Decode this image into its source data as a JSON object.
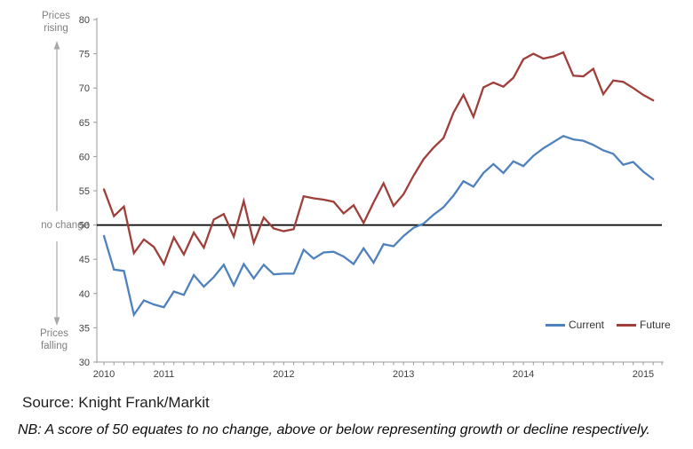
{
  "annotations": {
    "rising": "Prices rising",
    "no_change": "no change",
    "falling": "Prices falling"
  },
  "legend": [
    {
      "label": "Current",
      "color": "#4f81bd"
    },
    {
      "label": "Future",
      "color": "#9e3f3a"
    }
  ],
  "source_line": "Source: Knight Frank/Markit",
  "nb_line": "NB: A score of 50 equates to no change, above or below representing growth or decline respectively.",
  "chart_data": {
    "type": "line",
    "title": "",
    "xlabel": "",
    "ylabel": "",
    "x_start": "2010-07",
    "x_interval": "monthly",
    "x_tick_labels": [
      "2010",
      "2011",
      "2012",
      "2013",
      "2014",
      "2015"
    ],
    "x_tick_month_indices": [
      0,
      6,
      18,
      30,
      42,
      54
    ],
    "y_ticks": [
      30,
      35,
      40,
      45,
      50,
      55,
      60,
      65,
      70,
      75,
      80
    ],
    "ylim": [
      30,
      80
    ],
    "grid": false,
    "reference_line": {
      "value": 50,
      "label": "no change",
      "color": "#000000"
    },
    "axis_color": "#9a9a9a",
    "tick_label_color": "#3f3f3f",
    "legend_position": "inside-bottom-right",
    "series": [
      {
        "name": "Current",
        "color": "#4f81bd",
        "values": [
          48.4,
          43.5,
          43.3,
          36.9,
          39.0,
          38.4,
          38.0,
          40.3,
          39.8,
          42.7,
          41.0,
          42.4,
          44.2,
          41.2,
          44.3,
          42.2,
          44.2,
          42.8,
          42.9,
          42.9,
          46.4,
          45.1,
          46.0,
          46.1,
          45.4,
          44.3,
          46.6,
          44.5,
          47.2,
          46.9,
          48.4,
          49.6,
          50.2,
          51.5,
          52.6,
          54.3,
          56.4,
          55.6,
          57.6,
          58.9,
          57.6,
          59.3,
          58.6,
          60.1,
          61.2,
          62.1,
          63.0,
          62.5,
          62.3,
          61.7,
          60.9,
          60.4,
          58.8,
          59.2,
          57.8,
          56.7
        ]
      },
      {
        "name": "Future",
        "color": "#9e3f3a",
        "values": [
          55.2,
          51.3,
          52.7,
          45.9,
          47.9,
          46.8,
          44.3,
          48.2,
          45.7,
          48.9,
          46.7,
          50.8,
          51.6,
          48.3,
          53.5,
          47.4,
          51.1,
          49.5,
          49.1,
          49.4,
          54.2,
          53.9,
          53.7,
          53.4,
          51.7,
          52.9,
          50.3,
          53.3,
          56.1,
          52.8,
          54.5,
          57.2,
          59.6,
          61.3,
          62.7,
          66.4,
          69.0,
          65.8,
          70.1,
          70.8,
          70.2,
          71.5,
          74.2,
          75.0,
          74.3,
          74.6,
          75.2,
          71.8,
          71.7,
          72.8,
          69.1,
          71.1,
          70.9,
          70.0,
          69.0,
          68.2
        ]
      }
    ]
  }
}
